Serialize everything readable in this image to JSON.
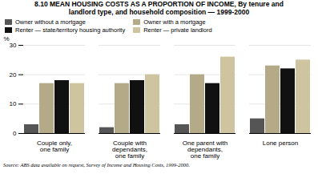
{
  "chart_data": {
    "type": "bar",
    "title": "8.10  MEAN HOUSING COSTS AS A PROPORTION OF INCOME, By tenure and\nlandlord type, and household composition — 1999-2000",
    "ylabel": "%",
    "categories": [
      "Couple only,\none family",
      "Couple with\ndependants,\none family",
      "One parent with\ndependants,\none family",
      "Lone person"
    ],
    "series": [
      {
        "name": "Owner without a mortgage",
        "color": "#555555",
        "values": [
          3,
          2,
          3,
          5
        ]
      },
      {
        "name": "Owner with a mortgage",
        "color": "#b5aa87",
        "values": [
          17,
          17,
          20,
          23
        ]
      },
      {
        "name": "Renter — state/territory housing authority",
        "color": "#111111",
        "values": [
          18,
          18,
          17,
          22
        ]
      },
      {
        "name": "Renter — private landlord",
        "color": "#cec4a0",
        "values": [
          17,
          20,
          26,
          25
        ]
      }
    ],
    "ylim": [
      0,
      30
    ],
    "yticks": [
      0,
      10,
      20,
      30
    ],
    "grid": true,
    "legend": "upper left",
    "source": "Source: ABS data available on request, Survey of Income and Housing Costs, 1999-2000."
  }
}
